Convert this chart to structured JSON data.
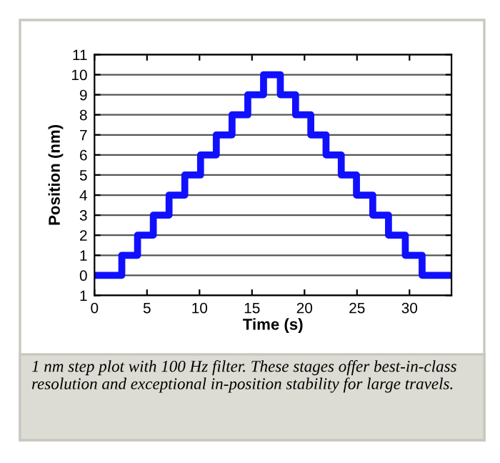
{
  "chart_data": {
    "type": "step",
    "xlabel": "Time (s)",
    "ylabel": "Position (nm)",
    "x": [
      0,
      2.6,
      4.1,
      5.6,
      7.1,
      8.6,
      10.1,
      11.6,
      13.1,
      14.6,
      16.1,
      17.7,
      19.15,
      20.6,
      22.05,
      23.5,
      24.95,
      26.5,
      28.0,
      29.6,
      31.2,
      34
    ],
    "series": [
      {
        "color": "#1010ff",
        "values": [
          0,
          1,
          2,
          3,
          4,
          5,
          6,
          7,
          8,
          9,
          10,
          9,
          8,
          7,
          6,
          5,
          4,
          3,
          2,
          1,
          0,
          0
        ]
      }
    ],
    "xlim": [
      0,
      34
    ],
    "xticks": [
      0,
      5,
      10,
      15,
      20,
      25,
      30
    ],
    "ylim": [
      -1,
      11
    ],
    "yticks": [
      {
        "value": -1,
        "label": "1"
      },
      0,
      1,
      2,
      3,
      4,
      5,
      6,
      7,
      8,
      9,
      10,
      11
    ],
    "grid": "y",
    "line_style": "solid",
    "annotations": [
      "1 nm step plot with 100 Hz filter. These stages offer best-in-class resolution and exceptional in-position stability for large travels."
    ]
  }
}
